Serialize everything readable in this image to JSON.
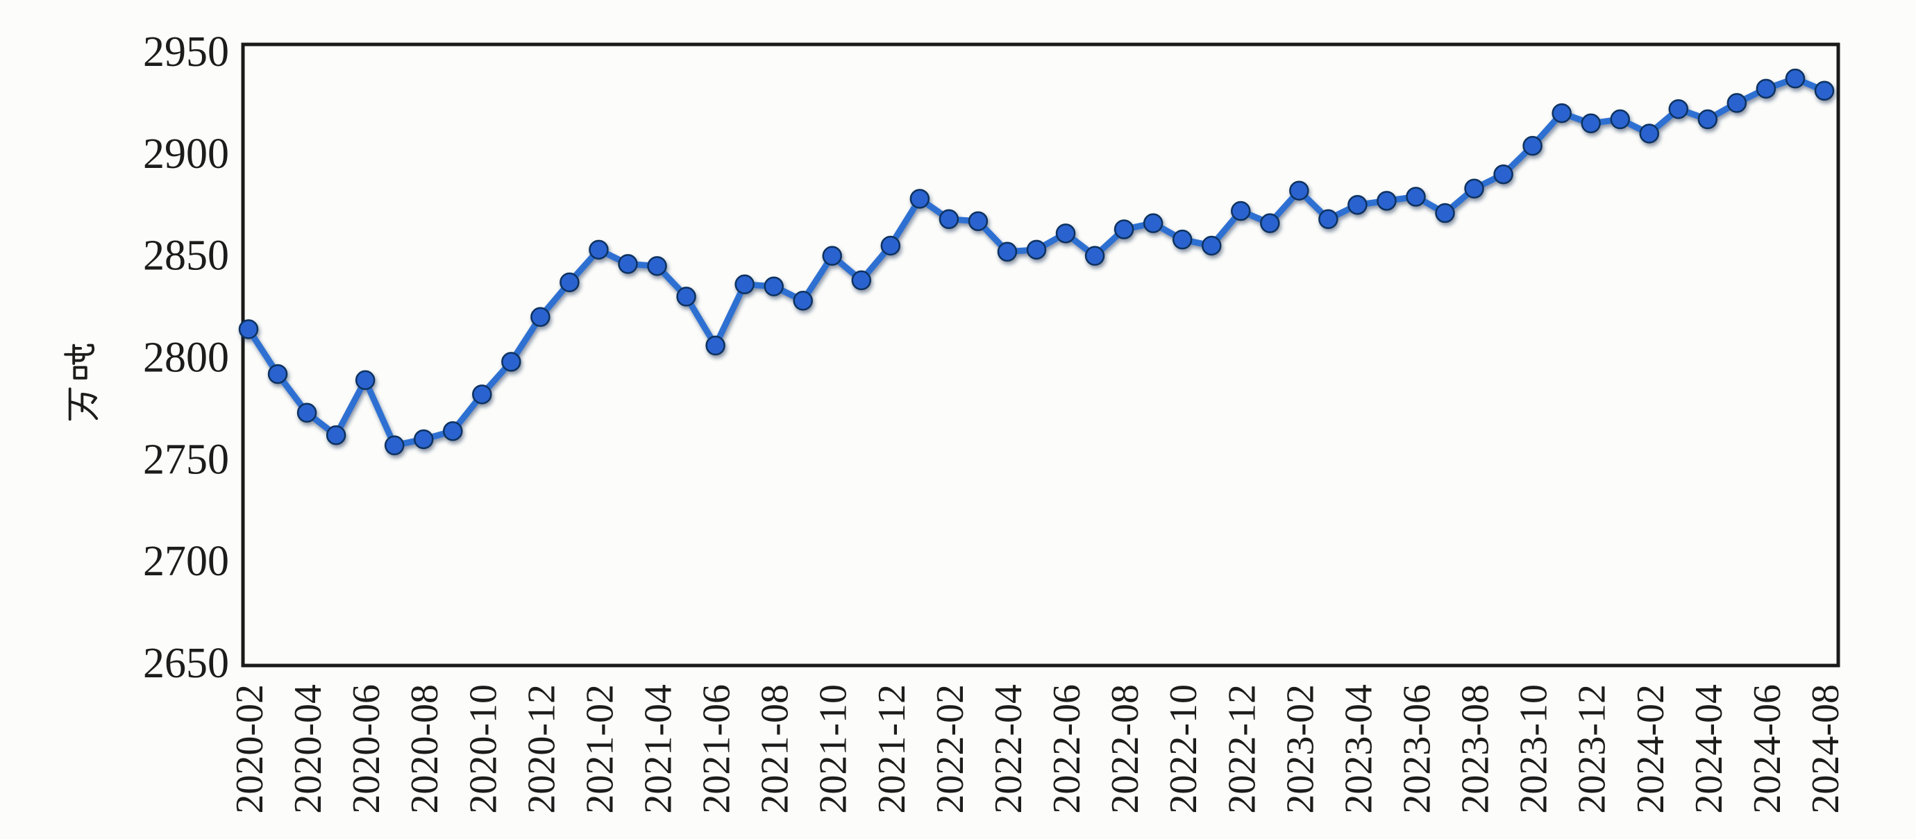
{
  "chart_data": {
    "type": "line",
    "title": "",
    "xlabel": "",
    "ylabel": "万吨",
    "grid": false,
    "legend_position": "none",
    "ylim": [
      2650,
      2950
    ],
    "yticks": [
      2650,
      2700,
      2750,
      2800,
      2850,
      2900,
      2950
    ],
    "xtick_every": 2,
    "x": [
      "2020-02",
      "2020-03",
      "2020-04",
      "2020-05",
      "2020-06",
      "2020-07",
      "2020-08",
      "2020-09",
      "2020-10",
      "2020-11",
      "2020-12",
      "2021-01",
      "2021-02",
      "2021-03",
      "2021-04",
      "2021-05",
      "2021-06",
      "2021-07",
      "2021-08",
      "2021-09",
      "2021-10",
      "2021-11",
      "2021-12",
      "2022-01",
      "2022-02",
      "2022-03",
      "2022-04",
      "2022-05",
      "2022-06",
      "2022-07",
      "2022-08",
      "2022-09",
      "2022-10",
      "2022-11",
      "2022-12",
      "2023-01",
      "2023-02",
      "2023-03",
      "2023-04",
      "2023-05",
      "2023-06",
      "2023-07",
      "2023-08",
      "2023-09",
      "2023-10",
      "2023-11",
      "2023-12",
      "2024-01",
      "2024-02",
      "2024-03",
      "2024-04",
      "2024-05",
      "2024-06",
      "2024-07",
      "2024-08"
    ],
    "values": [
      2814,
      2792,
      2773,
      2762,
      2789,
      2757,
      2760,
      2764,
      2782,
      2798,
      2820,
      2837,
      2853,
      2846,
      2845,
      2830,
      2806,
      2836,
      2835,
      2828,
      2850,
      2838,
      2855,
      2878,
      2868,
      2867,
      2852,
      2853,
      2861,
      2850,
      2863,
      2866,
      2858,
      2855,
      2872,
      2866,
      2882,
      2868,
      2875,
      2877,
      2879,
      2871,
      2883,
      2890,
      2904,
      2920,
      2915,
      2917,
      2910,
      2922,
      2917,
      2925,
      2932,
      2937,
      2931
    ],
    "colors": {
      "line": "#2e6fd2",
      "marker_fill": "#2a63cf",
      "marker_edge": "#10315f",
      "frame": "#1a1a1a",
      "text": "#1c1c1c",
      "background": "#fcfcfa"
    }
  }
}
